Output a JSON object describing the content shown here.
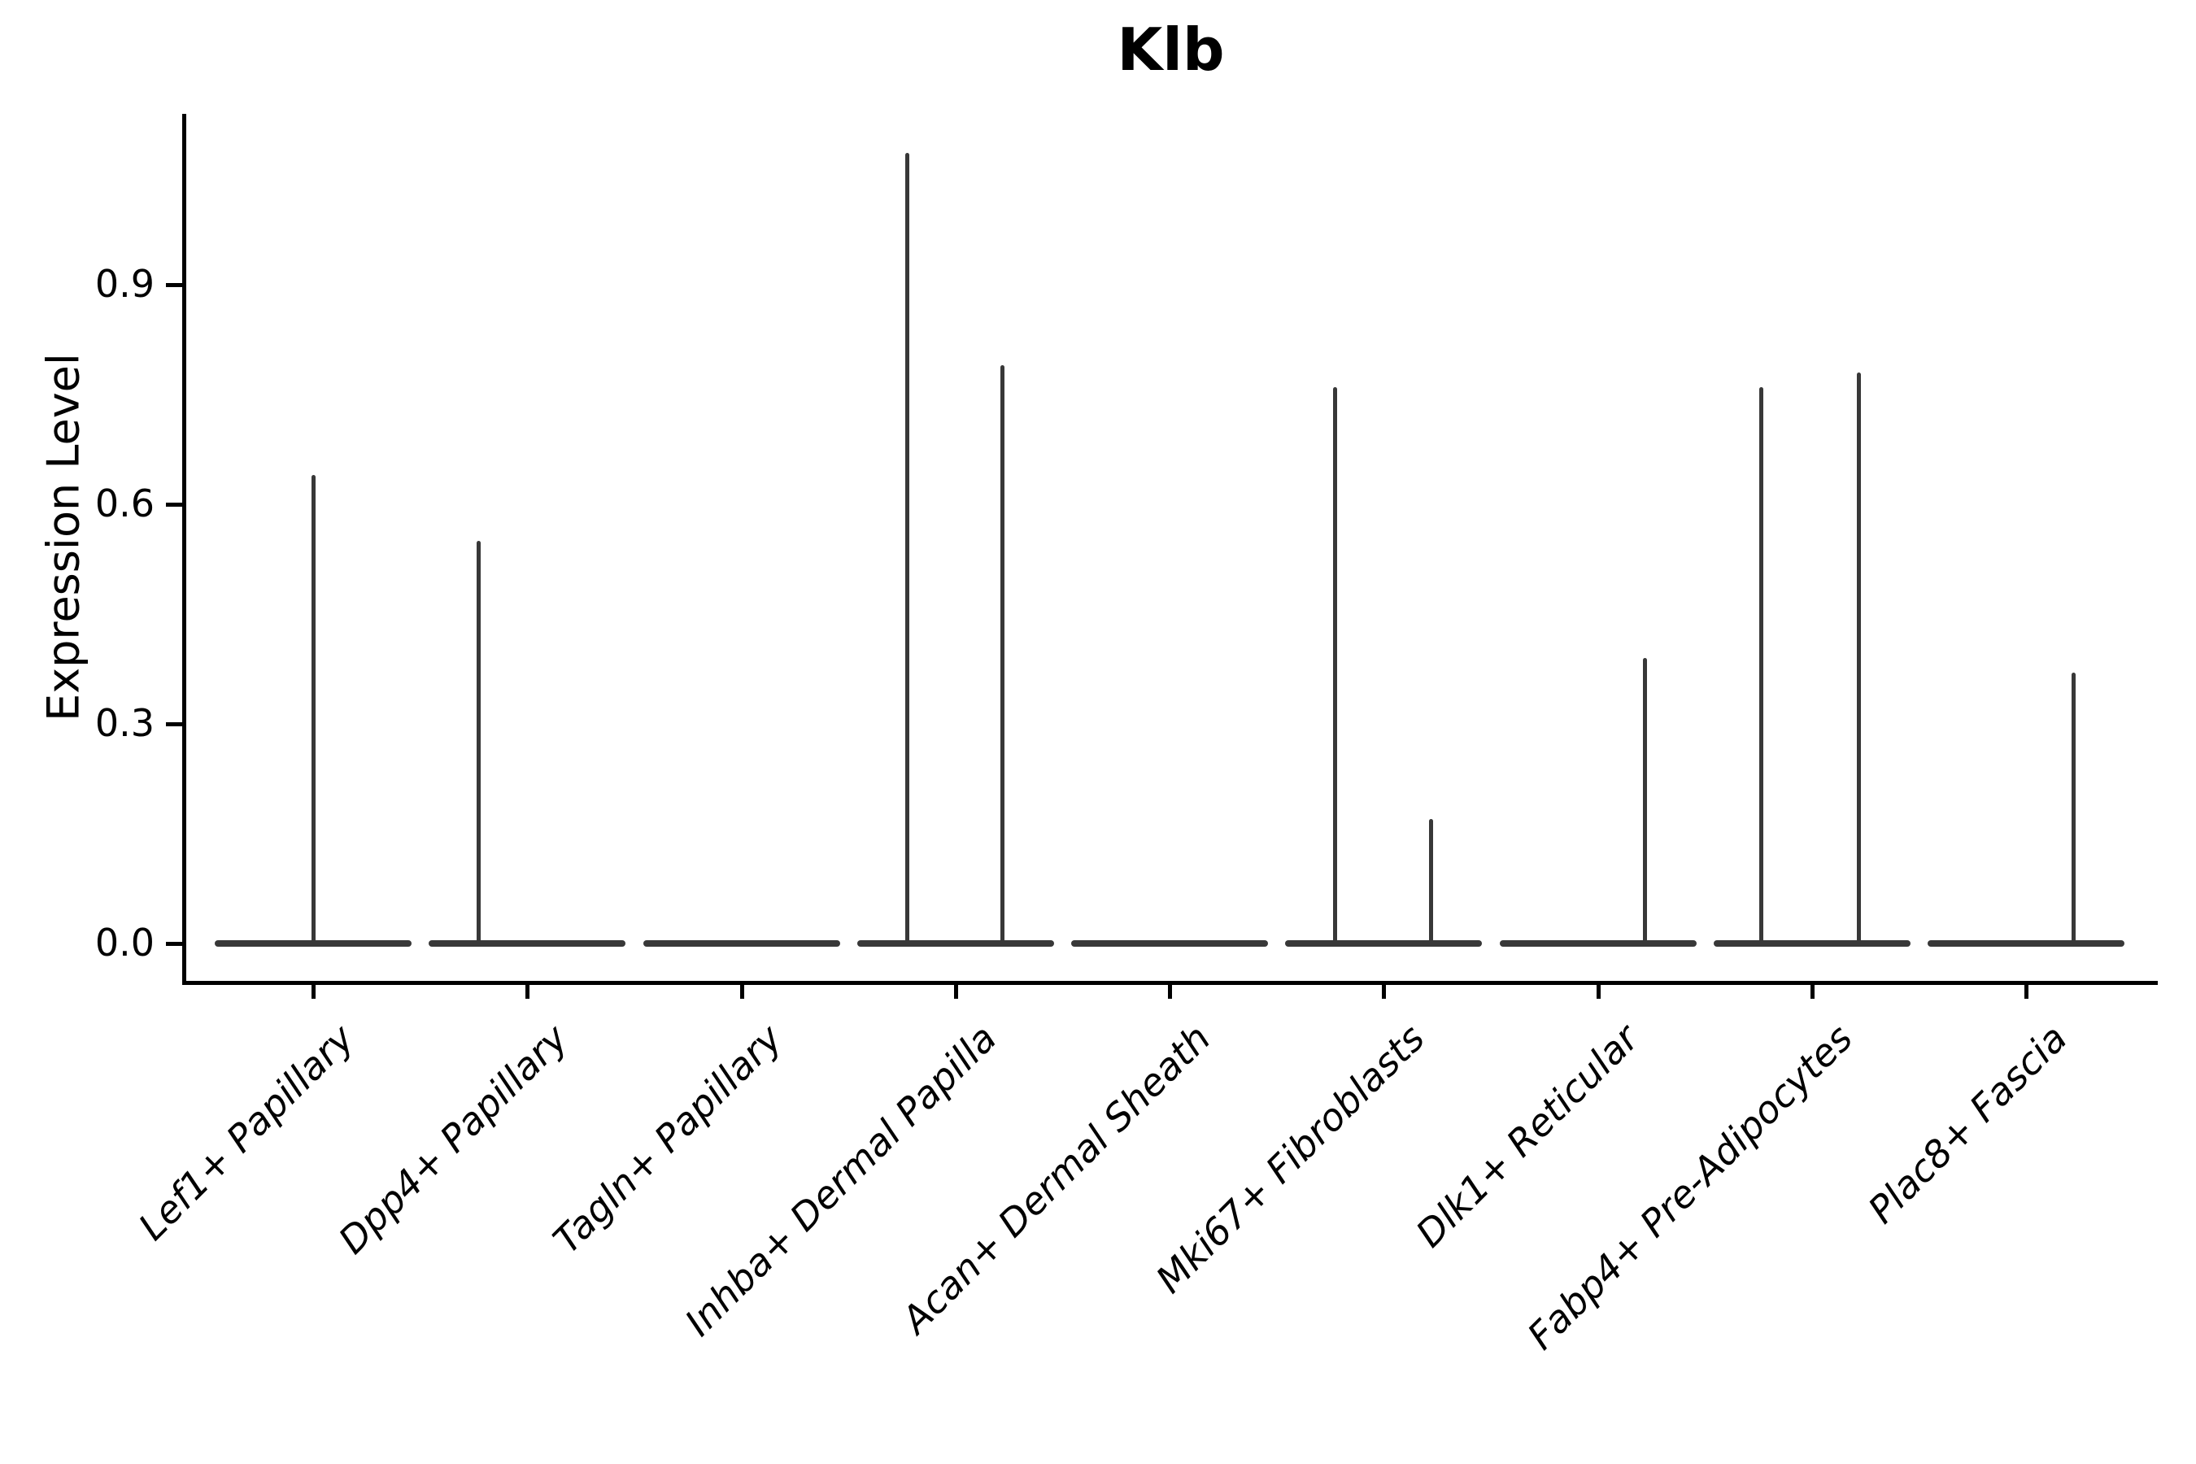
{
  "chart_data": {
    "type": "violin",
    "title": "Klb",
    "ylabel": "Expression Level",
    "xlabel": "",
    "ylim": [
      -0.05,
      1.13
    ],
    "grid": false,
    "legend": "none",
    "yticks": [
      {
        "label": "0.0",
        "value": 0.0
      },
      {
        "label": "0.3",
        "value": 0.3
      },
      {
        "label": "0.6",
        "value": 0.6
      },
      {
        "label": "0.9",
        "value": 0.9
      }
    ],
    "categories": [
      "Lef1+ Papillary",
      "Dpp4+ Papillary",
      "Tagln+ Papillary",
      "Inhba+ Dermal Papilla",
      "Acan+ Dermal Sheath",
      "Mki67+ Fibroblasts",
      "Dlk1+ Reticular",
      "Fabp4+ Pre-Adipocytes",
      "Plac8+ Fascia"
    ],
    "series": [
      {
        "name": "Lef1+ Papillary",
        "baseline_value": 0.0,
        "spikes": [
          {
            "dx": 0,
            "value": 0.64
          }
        ]
      },
      {
        "name": "Dpp4+ Papillary",
        "baseline_value": 0.0,
        "spikes": [
          {
            "dx": -60,
            "value": 0.55
          }
        ]
      },
      {
        "name": "Tagln+ Papillary",
        "baseline_value": 0.0,
        "spikes": []
      },
      {
        "name": "Inhba+ Dermal Papilla",
        "baseline_value": 0.0,
        "spikes": [
          {
            "dx": -59,
            "value": 1.08
          },
          {
            "dx": 58,
            "value": 0.79
          }
        ]
      },
      {
        "name": "Acan+ Dermal Sheath",
        "baseline_value": 0.0,
        "spikes": []
      },
      {
        "name": "Mki67+ Fibroblasts",
        "baseline_value": 0.0,
        "spikes": [
          {
            "dx": -60,
            "value": 0.76
          },
          {
            "dx": 58,
            "value": 0.17
          }
        ]
      },
      {
        "name": "Dlk1+ Reticular",
        "baseline_value": 0.0,
        "spikes": [
          {
            "dx": 58,
            "value": 0.39
          }
        ]
      },
      {
        "name": "Fabp4+ Pre-Adipocytes",
        "baseline_value": 0.0,
        "spikes": [
          {
            "dx": -62,
            "value": 0.76
          },
          {
            "dx": 58,
            "value": 0.78
          }
        ]
      },
      {
        "name": "Plac8+ Fascia",
        "baseline_value": 0.0,
        "spikes": [
          {
            "dx": 58,
            "value": 0.37
          }
        ]
      }
    ],
    "colors": {
      "violin_line": "#383838",
      "axis_line": "#000000",
      "text": "#000000",
      "background": "#ffffff"
    }
  }
}
